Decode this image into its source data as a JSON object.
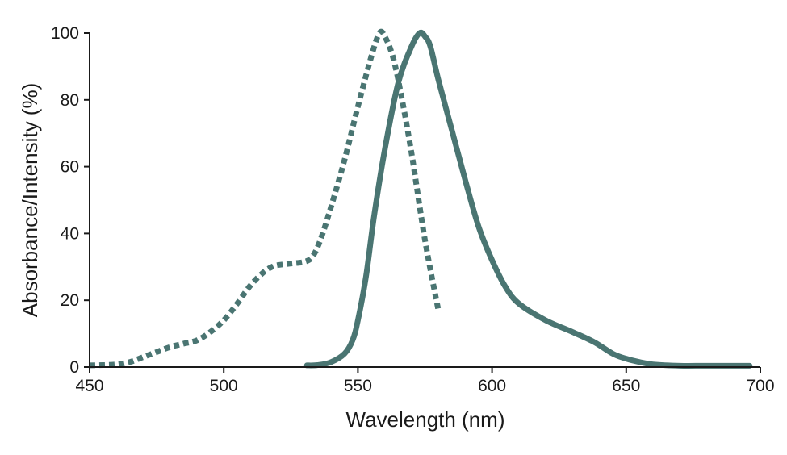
{
  "chart_data": {
    "type": "line",
    "xlabel": "Wavelength (nm)",
    "ylabel": "Absorbance/Intensity (%)",
    "xlim": [
      450,
      700
    ],
    "ylim": [
      0,
      100
    ],
    "xticks": [
      450,
      500,
      550,
      600,
      650,
      700
    ],
    "yticks": [
      0,
      20,
      40,
      60,
      80,
      100
    ],
    "grid": false,
    "color": "#4a7572",
    "series": [
      {
        "style": "dotted",
        "x": [
          450,
          455,
          460,
          465,
          470,
          475,
          480,
          485,
          490,
          495,
          500,
          505,
          510,
          515,
          518,
          520,
          525,
          530,
          533,
          536,
          540,
          545,
          550,
          555,
          558,
          560,
          563,
          566,
          570,
          575,
          580
        ],
        "y": [
          0.5,
          0.6,
          0.8,
          1.5,
          3,
          4.5,
          6,
          7,
          8,
          10.5,
          14,
          19,
          24.5,
          28.5,
          30,
          30.5,
          31,
          31.5,
          33,
          38,
          48,
          62,
          78,
          93,
          100,
          99,
          93,
          82,
          64,
          38,
          17
        ]
      },
      {
        "style": "solid",
        "x": [
          531,
          535,
          540,
          545,
          548,
          550,
          553,
          556,
          560,
          565,
          570,
          573,
          575,
          577,
          580,
          585,
          590,
          595,
          600,
          605,
          610,
          620,
          630,
          638,
          645,
          650,
          655,
          660,
          670,
          680,
          696
        ],
        "y": [
          0.5,
          0.6,
          1.5,
          4,
          8,
          14,
          27,
          45,
          65,
          85,
          96,
          100,
          99,
          96,
          86,
          71,
          56,
          42,
          32,
          24,
          19,
          14,
          10.5,
          7.5,
          4,
          2.5,
          1.5,
          0.8,
          0.4,
          0.4,
          0.4
        ]
      }
    ]
  }
}
